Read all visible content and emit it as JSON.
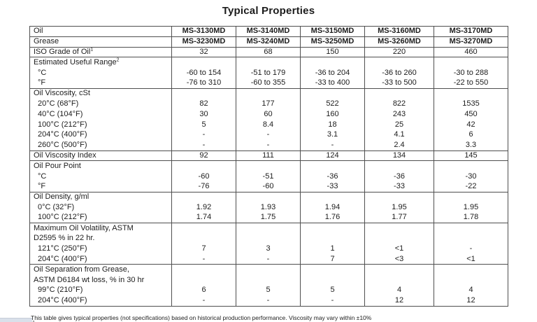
{
  "title": "Typical Properties",
  "colors": {
    "border": "#4f4f4f",
    "text": "#1c1c1c",
    "strip": "#d9e0ea"
  },
  "table": {
    "rows": [
      {
        "label": "Oil",
        "top": true,
        "bold": true,
        "values": [
          "MS-3130MD",
          "MS-3140MD",
          "MS-3150MD",
          "MS-3160MD",
          "MS-3170MD"
        ]
      },
      {
        "label": "Grease",
        "top": true,
        "bold": true,
        "values": [
          "MS-3230MD",
          "MS-3240MD",
          "MS-3250MD",
          "MS-3260MD",
          "MS-3270MD"
        ]
      },
      {
        "label": "ISO Grade of Oil",
        "sup": "1",
        "top": true,
        "values": [
          "32",
          "68",
          "150",
          "220",
          "460"
        ]
      },
      {
        "label": "Estimated Useful Range",
        "sup": "2",
        "top": true,
        "values": [
          "",
          "",
          "",
          "",
          ""
        ]
      },
      {
        "label": "°C",
        "indent": true,
        "values": [
          "-60 to 154",
          "-51 to 179",
          "-36 to 204",
          "-36 to 260",
          "-30 to 288"
        ]
      },
      {
        "label": "°F",
        "indent": true,
        "values": [
          "-76 to 310",
          "-60 to 355",
          "-33 to 400",
          "-33 to 500",
          "-22 to 550"
        ]
      },
      {
        "label": "Oil Viscosity, cSt",
        "top": true,
        "values": [
          "",
          "",
          "",
          "",
          ""
        ]
      },
      {
        "label": "20°C (68°F)",
        "indent": true,
        "values": [
          "82",
          "177",
          "522",
          "822",
          "1535"
        ]
      },
      {
        "label": "40°C (104°F)",
        "indent": true,
        "values": [
          "30",
          "60",
          "160",
          "243",
          "450"
        ]
      },
      {
        "label": "100°C (212°F)",
        "indent": true,
        "values": [
          "5",
          "8.4",
          "18",
          "25",
          "42"
        ]
      },
      {
        "label": "204°C (400°F)",
        "indent": true,
        "values": [
          "-",
          "-",
          "3.1",
          "4.1",
          "6"
        ]
      },
      {
        "label": "260°C (500°F)",
        "indent": true,
        "values": [
          "-",
          "-",
          "-",
          "2.4",
          "3.3"
        ]
      },
      {
        "label": "Oil Viscosity Index",
        "top": true,
        "values": [
          "92",
          "111",
          "124",
          "134",
          "145"
        ]
      },
      {
        "label": "Oil Pour Point",
        "top": true,
        "values": [
          "",
          "",
          "",
          "",
          ""
        ]
      },
      {
        "label": "°C",
        "indent": true,
        "values": [
          "-60",
          "-51",
          "-36",
          "-36",
          "-30"
        ]
      },
      {
        "label": "°F",
        "indent": true,
        "values": [
          "-76",
          "-60",
          "-33",
          "-33",
          "-22"
        ]
      },
      {
        "label": "Oil Density, g/ml",
        "top": true,
        "values": [
          "",
          "",
          "",
          "",
          ""
        ]
      },
      {
        "label": "0°C (32°F)",
        "indent": true,
        "values": [
          "1.92",
          "1.93",
          "1.94",
          "1.95",
          "1.95"
        ]
      },
      {
        "label": "100°C (212°F)",
        "indent": true,
        "values": [
          "1.74",
          "1.75",
          "1.76",
          "1.77",
          "1.78"
        ]
      },
      {
        "label": "Maximum Oil Volatility, ASTM",
        "top": true,
        "values": [
          "",
          "",
          "",
          "",
          ""
        ]
      },
      {
        "label": "D2595 % in 22 hr.",
        "values": [
          "",
          "",
          "",
          "",
          ""
        ]
      },
      {
        "label": "121°C (250°F)",
        "indent": true,
        "values": [
          "7",
          "3",
          "1",
          "<1",
          "-"
        ]
      },
      {
        "label": "204°C (400°F)",
        "indent": true,
        "values": [
          "-",
          "-",
          "7",
          "<3",
          "<1"
        ]
      },
      {
        "label": "Oil Separation from Grease,",
        "top": true,
        "values": [
          "",
          "",
          "",
          "",
          ""
        ]
      },
      {
        "label": "ASTM D6184 wt loss, % in 30 hr",
        "values": [
          "",
          "",
          "",
          "",
          ""
        ]
      },
      {
        "label": "99°C (210°F)",
        "indent": true,
        "values": [
          "6",
          "5",
          "5",
          "4",
          "4"
        ]
      },
      {
        "label": "204°C (400°F)",
        "indent": true,
        "values": [
          "-",
          "-",
          "-",
          "12",
          "12"
        ]
      }
    ]
  },
  "footnote": "This table gives typical properties (not specifications) based on historical production performance. Viscosity may vary within ±10%",
  "partial_footnote": "1"
}
